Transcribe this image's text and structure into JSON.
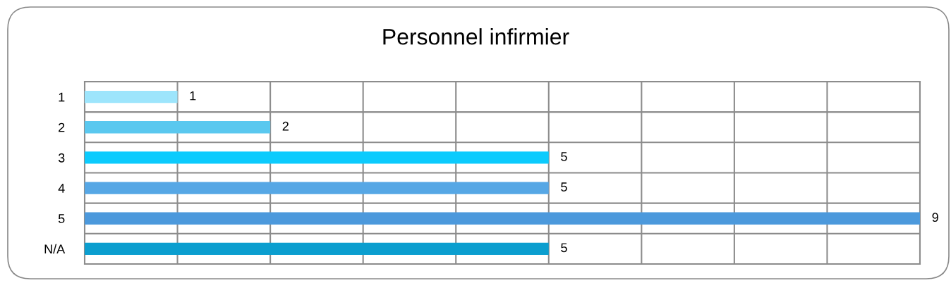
{
  "chart_data": {
    "type": "bar",
    "orientation": "horizontal",
    "title": "Personnel infirmier",
    "categories": [
      "1",
      "2",
      "3",
      "4",
      "5",
      "N/A"
    ],
    "values": [
      1,
      2,
      5,
      5,
      9,
      5
    ],
    "colors": [
      "#9de5fc",
      "#5ac8ef",
      "#0ccbfd",
      "#56a7e5",
      "#4c99dc",
      "#0b9ecf"
    ],
    "xlim": [
      0,
      9
    ],
    "xticks": [
      {
        "value": 0,
        "label": null
      },
      {
        "value": 1,
        "label": null
      },
      {
        "value": 2,
        "label": null
      },
      {
        "value": 3,
        "label": null
      },
      {
        "value": 4,
        "label": null
      },
      {
        "value": 5,
        "label": null
      },
      {
        "value": 6,
        "label": null
      },
      {
        "value": 7,
        "label": null
      },
      {
        "value": 8,
        "label": null
      },
      {
        "value": 9,
        "label": null
      }
    ],
    "tick_labels": "y",
    "grid": true,
    "data_labels": true
  }
}
